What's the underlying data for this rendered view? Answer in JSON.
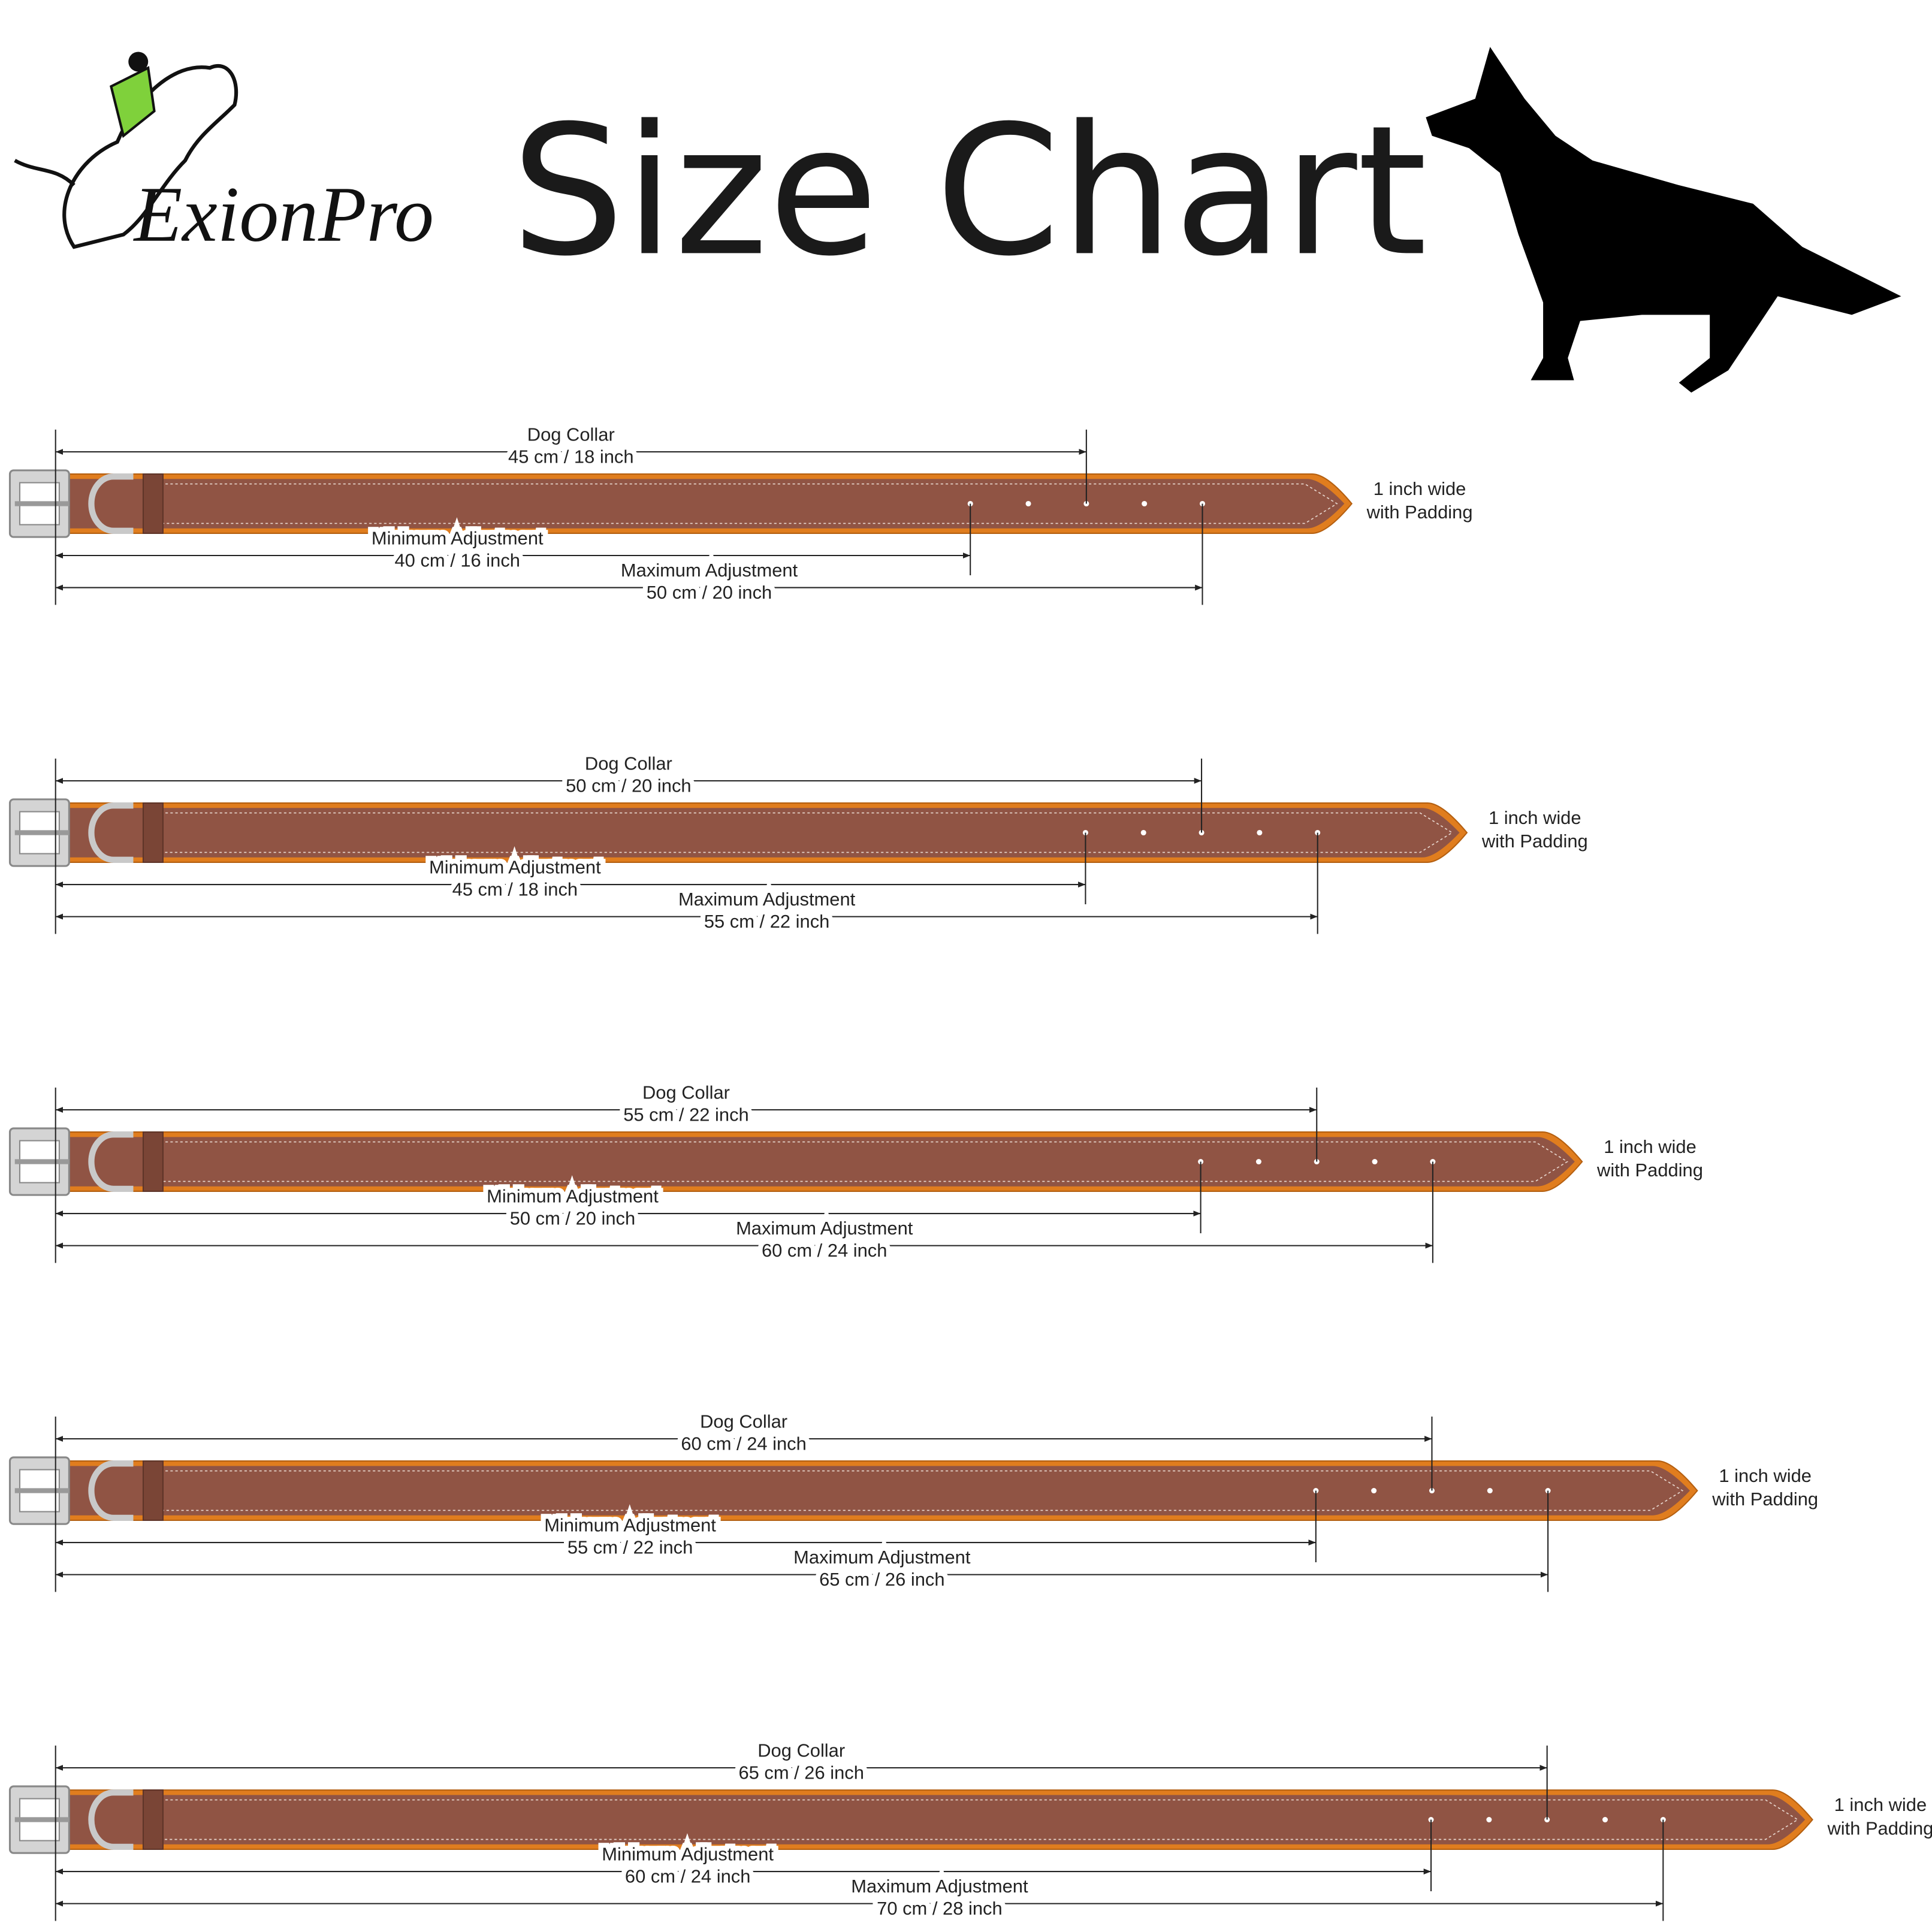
{
  "header": {
    "logo": "ExionPro",
    "title": "Size Chart"
  },
  "collars": [
    {
      "label": "Dog Collar",
      "size": "45 cm / 18 inch",
      "min_label": "Minimum Adjustment",
      "min_size": "40 cm / 16 inch",
      "max_label": "Maximum Adjustment",
      "max_size": "50 cm / 20 inch",
      "width": "1 inch wide",
      "padding": "with Padding"
    },
    {
      "label": "Dog Collar",
      "size": "50 cm / 20 inch",
      "min_label": "Minimum Adjustment",
      "min_size": "45 cm / 18 inch",
      "max_label": "Maximum Adjustment",
      "max_size": "55 cm / 22 inch",
      "width": "1 inch wide",
      "padding": "with Padding"
    },
    {
      "label": "Dog Collar",
      "size": "55 cm / 22 inch",
      "min_label": "Minimum Adjustment",
      "min_size": "50 cm / 20 inch",
      "max_label": "Maximum Adjustment",
      "max_size": "60 cm / 24 inch",
      "width": "1 inch wide",
      "padding": "with Padding"
    },
    {
      "label": "Dog Collar",
      "size": "60 cm / 24 inch",
      "min_label": "Minimum Adjustment",
      "min_size": "55 cm / 22 inch",
      "max_label": "Maximum Adjustment",
      "max_size": "65 cm / 26 inch",
      "width": "1 inch wide",
      "padding": "with Padding"
    },
    {
      "label": "Dog Collar",
      "size": "65 cm / 26 inch",
      "min_label": "Minimum Adjustment",
      "min_size": "60 cm / 24 inch",
      "max_label": "Maximum Adjustment",
      "max_size": "70 cm / 28 inch",
      "width": "1 inch wide",
      "padding": "with Padding"
    }
  ]
}
